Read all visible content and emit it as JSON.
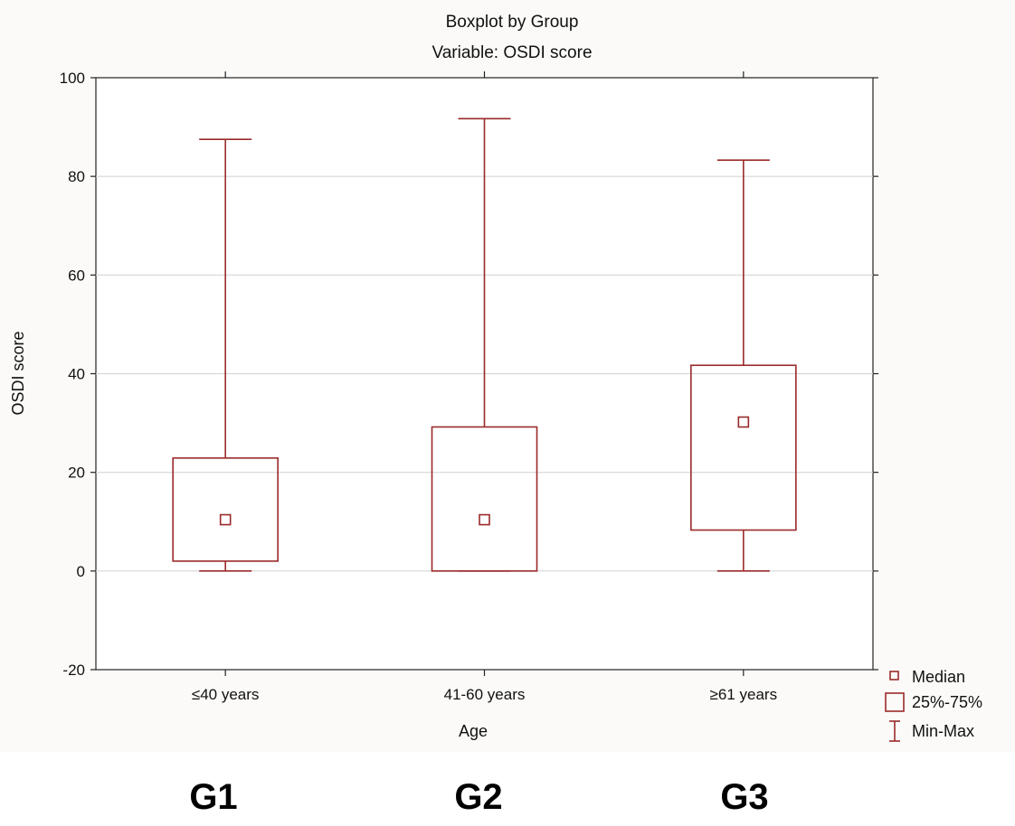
{
  "chart_data": {
    "type": "boxplot",
    "title": "Boxplot by Group",
    "subtitle": "Variable: OSDI score",
    "xlabel": "Age",
    "ylabel": "OSDI score",
    "ylim": [
      -20,
      100
    ],
    "yticks": [
      -20,
      0,
      20,
      40,
      60,
      80,
      100
    ],
    "grid": true,
    "categories": [
      "≤40 years",
      "41-60 years",
      "≥61 years"
    ],
    "boxes": [
      {
        "category": "≤40 years",
        "min": 0,
        "q1": 2,
        "median": 10.4,
        "q3": 22.9,
        "max": 87.5
      },
      {
        "category": "41-60 years",
        "min": 0,
        "q1": 0,
        "median": 10.4,
        "q3": 29.2,
        "max": 91.7
      },
      {
        "category": "≥61 years",
        "min": 0,
        "q1": 8.3,
        "median": 30.2,
        "q3": 41.7,
        "max": 83.3
      }
    ],
    "legend": {
      "placement": "bottom-right",
      "entries": [
        "Median",
        "25%-75%",
        "Min-Max"
      ]
    },
    "colors": {
      "box": "#9b2a2a",
      "grid": "#d6d6d6",
      "axis": "#222222"
    }
  },
  "group_labels": [
    "G1",
    "G2",
    "G3"
  ]
}
